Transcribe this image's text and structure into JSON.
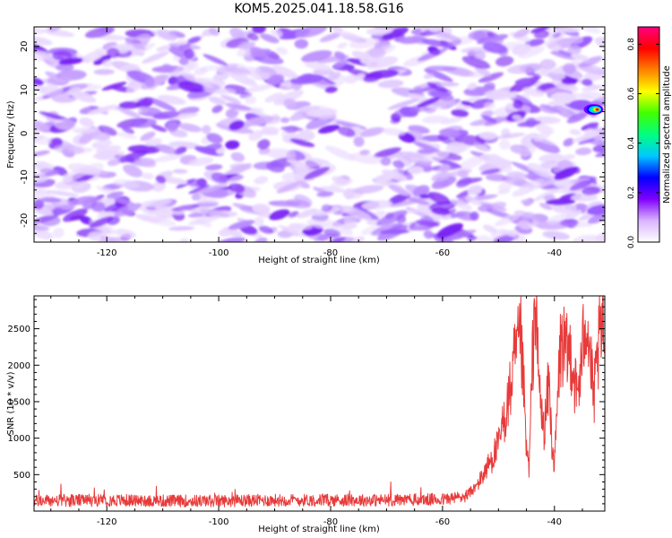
{
  "title": "KOM5.2025.041.18.58.G16",
  "chart_data": [
    {
      "type": "heatmap",
      "xlabel": "Height of straight line (km)",
      "ylabel": "Frequency (Hz)",
      "xlim": [
        -133,
        -31
      ],
      "ylim": [
        -25,
        24.5
      ],
      "xticks": [
        -120,
        -100,
        -80,
        -60,
        -40
      ],
      "yticks": [
        -20,
        -10,
        0,
        10,
        20
      ],
      "colorbar": {
        "label": "Normalized spectral amplitude",
        "range": [
          0.0,
          0.87
        ],
        "ticks": [
          "0.0",
          "0.2",
          "0.4",
          "0.6",
          "0.8"
        ],
        "colors": [
          "#ffffff",
          "#d9b3ff",
          "#8000ff",
          "#0000ff",
          "#00c8ff",
          "#00ff80",
          "#40ff00",
          "#ffff00",
          "#ff8000",
          "#ff0000",
          "#ff0080"
        ]
      },
      "background_level": "0.0–0.2 (white to violet speckle across the whole panel)",
      "peak": {
        "x": -33,
        "y": 5.5,
        "value": 0.87
      }
    },
    {
      "type": "line",
      "xlabel": "Height of straight line (km)",
      "ylabel": "SNR (10 * v/v)",
      "xlim": [
        -133,
        -31
      ],
      "ylim": [
        0,
        2950
      ],
      "xticks": [
        -120,
        -100,
        -80,
        -60,
        -40
      ],
      "yticks": [
        500,
        1000,
        1500,
        2000,
        2500
      ],
      "line_color": "#e83a3a",
      "series": [
        {
          "x": [
            -133,
            -120,
            -110,
            -100,
            -90,
            -80,
            -70,
            -60,
            -56,
            -54,
            -52,
            -50,
            -48,
            -47,
            -46,
            -45.5,
            -45,
            -44.5,
            -44,
            -43.5,
            -43,
            -42.5,
            -42,
            -41.5,
            -41,
            -40.5,
            -40,
            -39.5,
            -39,
            -38.5,
            -38,
            -37,
            -36,
            -35,
            -34.5,
            -34,
            -33.5,
            -33,
            -32,
            -31
          ],
          "y": [
            140,
            150,
            140,
            140,
            150,
            150,
            150,
            160,
            200,
            330,
            600,
            900,
            1600,
            2100,
            2300,
            1700,
            800,
            600,
            1900,
            2950,
            2100,
            1500,
            1100,
            1300,
            1800,
            1000,
            600,
            1400,
            2200,
            2300,
            2100,
            2200,
            1550,
            2100,
            2800,
            2500,
            2000,
            1500,
            2300,
            2550
          ]
        }
      ]
    }
  ]
}
